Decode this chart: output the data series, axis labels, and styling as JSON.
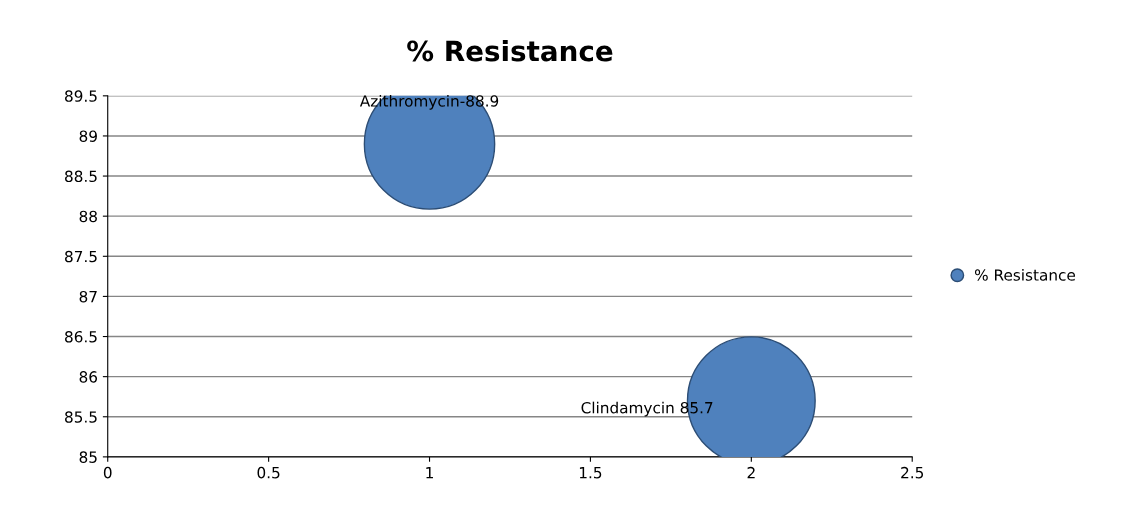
{
  "chart_data": {
    "type": "bubble",
    "title": "% Resistance",
    "x": [
      1,
      2
    ],
    "series": [
      {
        "name": "% Resistance",
        "color": "#4f81bd",
        "values": [
          88.9,
          85.7
        ],
        "sizes": [
          1,
          0.96
        ]
      }
    ],
    "annotations": [
      {
        "text": "Azithromycin-88.9",
        "x": 1,
        "y": 88.9
      },
      {
        "text": "Clindamycin 85.7",
        "x": 2,
        "y": 85.7
      }
    ],
    "xlim": [
      0,
      2.5
    ],
    "xticks": [
      0,
      0.5,
      1,
      1.5,
      2,
      2.5
    ],
    "ylim": [
      85,
      89.5
    ],
    "yticks": [
      85,
      85.5,
      86,
      86.5,
      87,
      87.5,
      88,
      88.5,
      89,
      89.5
    ],
    "grid": "y",
    "legend": "right"
  }
}
